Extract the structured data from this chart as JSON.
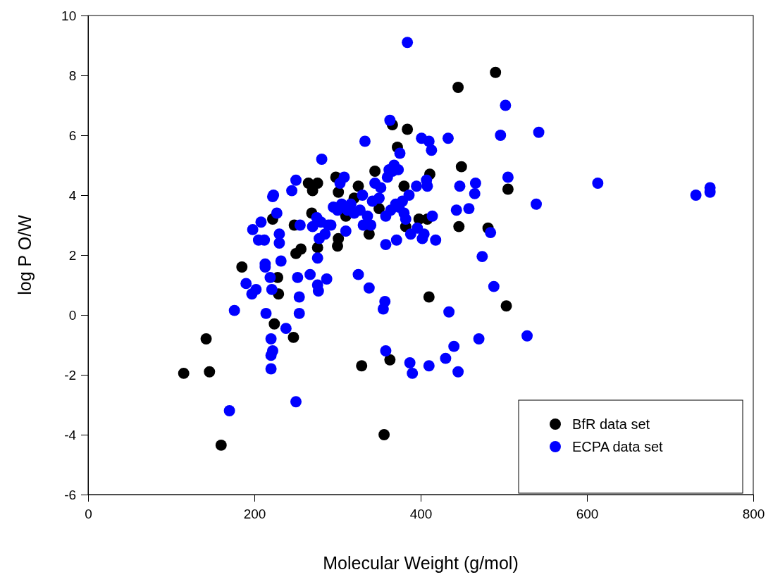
{
  "chart_data": {
    "type": "scatter",
    "xlabel": "Molecular Weight (g/mol)",
    "ylabel": "log P O/W",
    "xlim": [
      0,
      800
    ],
    "xticks": [
      0,
      200,
      400,
      600,
      800
    ],
    "ylim": [
      -6,
      10
    ],
    "yticks": [
      -6,
      -4,
      -2,
      0,
      2,
      4,
      6,
      8,
      10
    ],
    "legend": "bottom right",
    "marker": "circle",
    "grid": false,
    "series": [
      {
        "name": "BfR data set",
        "color": "#000000",
        "x": [
          115,
          142,
          146,
          160,
          185,
          222,
          224,
          228,
          229,
          247,
          248,
          250,
          256,
          265,
          270,
          269,
          276,
          276,
          298,
          301,
          300,
          301,
          320,
          325,
          329,
          338,
          345,
          350,
          356,
          363,
          366,
          372,
          380,
          382,
          384,
          398,
          410,
          411,
          408,
          445,
          446,
          449,
          481,
          490,
          503,
          505,
          310
        ],
        "values": [
          -1.95,
          -0.8,
          -1.9,
          -4.35,
          1.6,
          3.2,
          -0.3,
          1.25,
          0.7,
          -0.75,
          3.0,
          2.05,
          2.2,
          4.4,
          4.15,
          3.4,
          4.4,
          2.25,
          4.6,
          4.1,
          2.3,
          2.55,
          3.9,
          4.3,
          -1.7,
          2.7,
          4.8,
          3.55,
          -4.0,
          -1.5,
          6.35,
          5.6,
          4.3,
          2.95,
          6.2,
          3.2,
          0.6,
          4.7,
          3.2,
          7.6,
          2.95,
          4.95,
          2.9,
          8.1,
          0.3,
          4.2,
          3.3
        ]
      },
      {
        "name": "ECPA data set",
        "color": "#0000ff",
        "x": [
          170,
          176,
          190,
          197,
          198,
          202,
          205,
          208,
          212,
          213,
          213,
          214,
          219,
          220,
          220,
          220,
          221,
          222,
          222,
          223,
          227,
          230,
          230,
          232,
          238,
          245,
          250,
          250,
          252,
          254,
          254,
          255,
          267,
          270,
          275,
          276,
          276,
          277,
          278,
          280,
          281,
          285,
          287,
          289,
          292,
          295,
          300,
          303,
          305,
          308,
          310,
          312,
          316,
          320,
          325,
          327,
          330,
          331,
          333,
          336,
          338,
          340,
          342,
          345,
          350,
          352,
          355,
          357,
          358,
          358,
          358,
          360,
          362,
          363,
          364,
          366,
          368,
          370,
          371,
          373,
          374,
          375,
          378,
          380,
          382,
          384,
          386,
          387,
          388,
          390,
          395,
          396,
          401,
          402,
          404,
          407,
          408,
          410,
          410,
          413,
          414,
          418,
          430,
          433,
          434,
          440,
          443,
          445,
          447,
          458,
          465,
          466,
          470,
          474,
          484,
          488,
          496,
          502,
          505,
          528,
          539,
          542,
          613,
          731,
          748,
          748
        ],
        "values": [
          -3.2,
          0.15,
          1.05,
          0.7,
          2.85,
          0.85,
          2.5,
          3.1,
          2.5,
          1.7,
          1.6,
          0.05,
          1.25,
          -0.8,
          -1.35,
          -1.8,
          0.85,
          -1.2,
          3.95,
          4.0,
          3.4,
          2.4,
          2.7,
          1.8,
          -0.45,
          4.15,
          4.5,
          -2.9,
          1.25,
          0.6,
          0.05,
          3.0,
          1.35,
          2.95,
          3.25,
          1.9,
          1.0,
          0.8,
          2.55,
          3.1,
          5.2,
          2.7,
          1.2,
          3.0,
          3.0,
          3.6,
          3.5,
          4.4,
          3.7,
          4.6,
          2.8,
          3.5,
          3.7,
          3.4,
          1.35,
          3.5,
          4.0,
          3.0,
          5.8,
          3.3,
          0.9,
          3.0,
          3.8,
          4.4,
          3.9,
          4.25,
          0.2,
          0.45,
          -1.2,
          2.35,
          3.3,
          4.6,
          4.85,
          6.5,
          3.5,
          4.8,
          5.0,
          3.7,
          2.5,
          4.85,
          3.6,
          5.4,
          3.8,
          3.4,
          3.2,
          9.1,
          4.0,
          -1.6,
          2.7,
          -1.95,
          4.3,
          2.9,
          5.9,
          2.55,
          2.7,
          4.5,
          4.3,
          -1.7,
          5.8,
          5.5,
          3.3,
          2.5,
          -1.45,
          5.9,
          0.1,
          -1.05,
          3.5,
          -1.9,
          4.3,
          3.55,
          4.05,
          4.4,
          -0.8,
          1.95,
          2.75,
          0.95,
          6.0,
          7.0,
          4.6,
          -0.7,
          3.7,
          6.1,
          4.4,
          4.0,
          4.25,
          4.1
        ]
      }
    ]
  }
}
